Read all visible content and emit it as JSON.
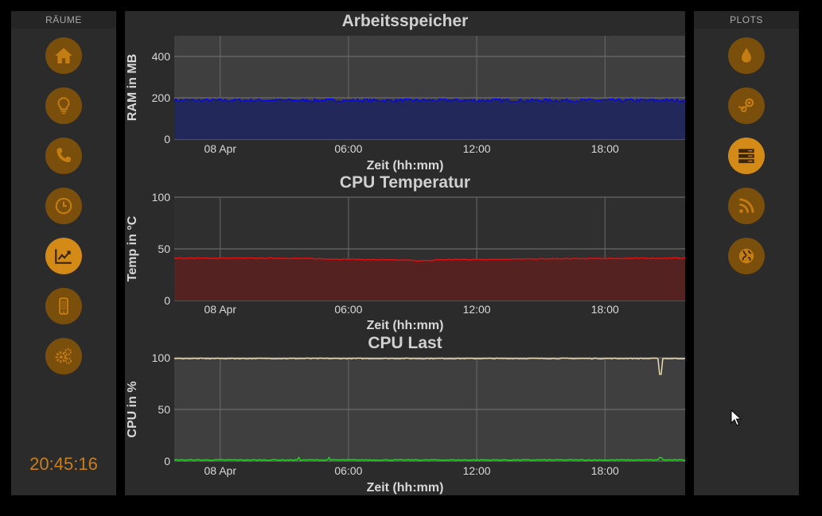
{
  "left_sidebar": {
    "header": "RÄUME",
    "buttons": [
      {
        "name": "home-icon",
        "active": false
      },
      {
        "name": "lightbulb-icon",
        "active": false
      },
      {
        "name": "phone-icon",
        "active": false
      },
      {
        "name": "clock-icon",
        "active": false
      },
      {
        "name": "chart-trend-icon",
        "active": true
      },
      {
        "name": "mobile-icon",
        "active": false
      },
      {
        "name": "gears-icon",
        "active": false
      }
    ],
    "clock": "20:45:16"
  },
  "right_sidebar": {
    "header": "PLOTS",
    "buttons": [
      {
        "name": "water-drop-icon",
        "active": false
      },
      {
        "name": "steam-icon",
        "active": false
      },
      {
        "name": "server-icon",
        "active": true
      },
      {
        "name": "rss-icon",
        "active": false
      },
      {
        "name": "globe-icon",
        "active": false
      }
    ]
  },
  "colors": {
    "accent": "#d48a17",
    "accent_dim": "#7a4e0b",
    "ram": "#0000ff",
    "temp": "#e01010",
    "cpu_user": "#e8d9b0",
    "cpu_sys": "#22cc22"
  },
  "chart_data": [
    {
      "type": "area",
      "title": "Arbeitsspeicher",
      "xlabel": "Zeit (hh:mm)",
      "ylabel": "RAM in MB",
      "x_ticks": [
        "08 Apr",
        "06:00",
        "12:00",
        "18:00"
      ],
      "y_ticks": [
        0,
        200,
        400
      ],
      "ylim": [
        0,
        500
      ],
      "x_range_hours": [
        -2.15,
        21.75
      ],
      "grid": true,
      "series": [
        {
          "values_summary": "≈185 MB, fluctuating 175–200 across the whole day"
        }
      ]
    },
    {
      "type": "area",
      "title": "CPU Temperatur",
      "xlabel": "Zeit (hh:mm)",
      "ylabel": "Temp in °C",
      "x_ticks": [
        "08 Apr",
        "06:00",
        "12:00",
        "18:00"
      ],
      "y_ticks": [
        0,
        50,
        100
      ],
      "ylim": [
        0,
        100
      ],
      "x_range_hours": [
        -2.15,
        21.75
      ],
      "grid": true,
      "series": [
        {
          "values_summary": "≈41 °C at start, dipping to ≈39 around 09:00, back to ≈41 by 21:00"
        }
      ]
    },
    {
      "type": "line",
      "title": "CPU Last",
      "xlabel": "Zeit (hh:mm)",
      "ylabel": "CPU in %",
      "x_ticks": [
        "08 Apr",
        "06:00",
        "12:00",
        "18:00"
      ],
      "y_ticks": [
        0,
        50,
        100
      ],
      "ylim": [
        0,
        100
      ],
      "x_range_hours": [
        -2.15,
        21.75
      ],
      "grid": true,
      "series": [
        {
          "values_summary": "≈100% throughout with a dip to ≈84% near 20:30"
        },
        {
          "values_summary": "≈1% throughout with small spikes"
        }
      ]
    }
  ]
}
